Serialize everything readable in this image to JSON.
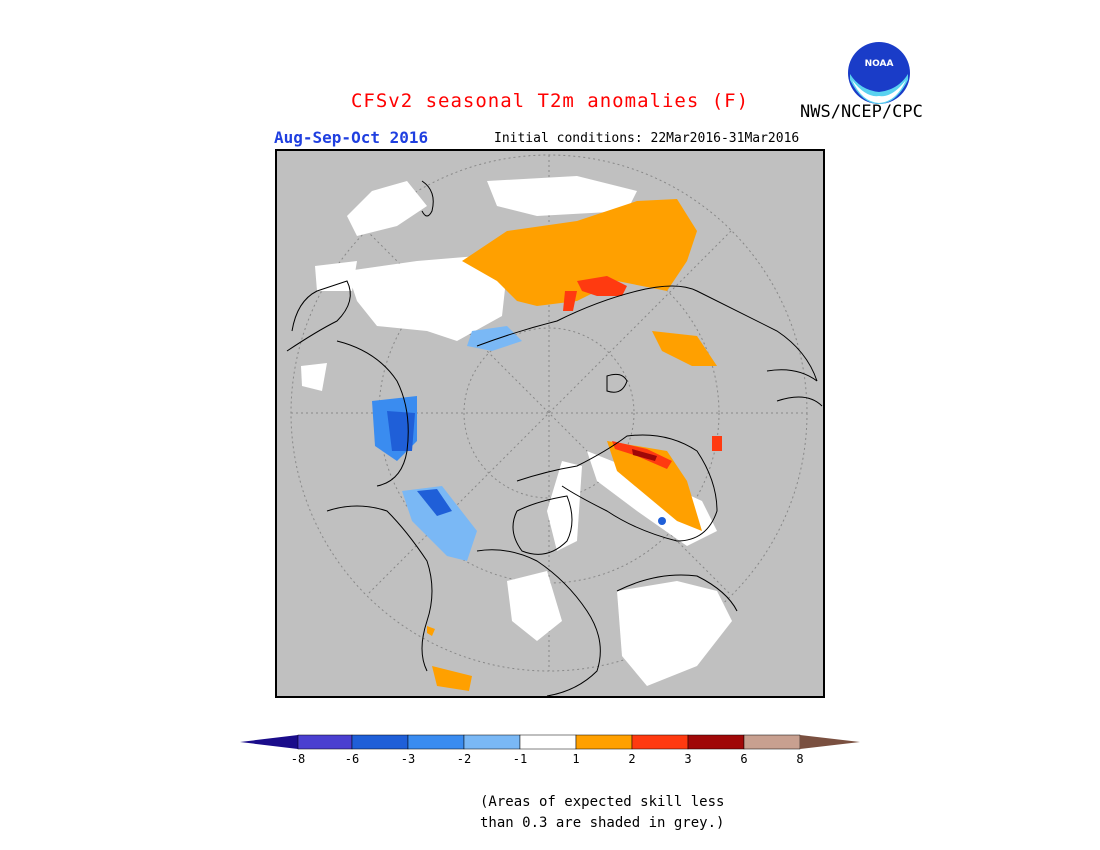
{
  "header": {
    "title": "CFSv2 seasonal T2m anomalies (F)",
    "org": "NWS/NCEP/CPC",
    "logo_text": "NOAA",
    "season": "Aug-Sep-Oct 2016",
    "init_conditions": "Initial conditions: 22Mar2016-31Mar2016"
  },
  "legend": {
    "colors": [
      "#1a0c8a",
      "#4a3fd0",
      "#1f5fd8",
      "#3a8cf0",
      "#7ab8f5",
      "#ffffff",
      "#ffa000",
      "#ff3a10",
      "#a00808",
      "#c8a090",
      "#7a5040"
    ],
    "ticks": [
      "-8",
      "-6",
      "-3",
      "-2",
      "-1",
      "1",
      "2",
      "3",
      "6",
      "8"
    ],
    "no_skill_color": "#c0c0c0"
  },
  "footnote": {
    "line1": "(Areas of expected skill less",
    "line2": "than 0.3 are shaded in grey.)"
  }
}
